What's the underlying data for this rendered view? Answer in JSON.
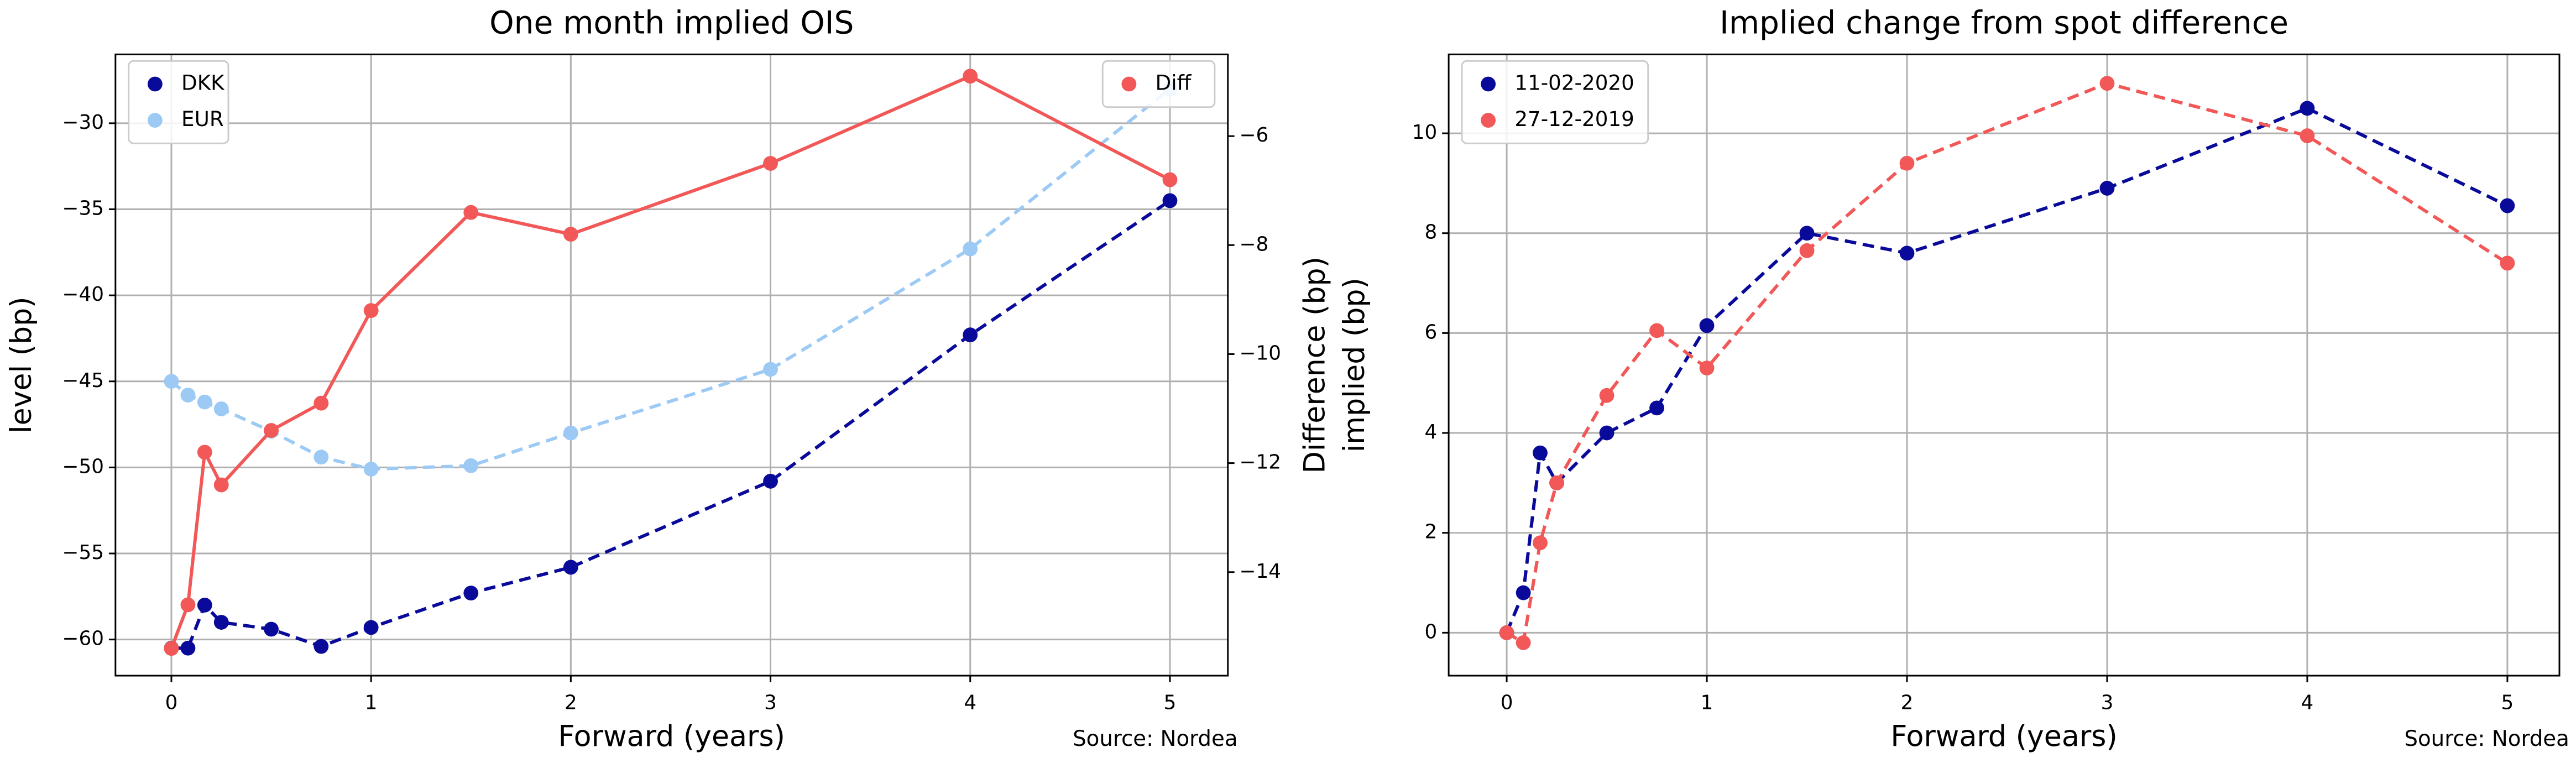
{
  "chart_data": [
    {
      "type": "line",
      "title": "One month implied OIS",
      "title_color": "#000000",
      "xlabel": "Forward (years)",
      "ylabel": "level (bp)",
      "y2label": "Difference (bp)",
      "y2label_color": "#0a0a9a",
      "source": "Source: Nordea",
      "x": [
        0,
        0.083,
        0.167,
        0.25,
        0.5,
        0.75,
        1,
        1.5,
        2,
        3,
        4,
        5
      ],
      "series": [
        {
          "name": "DKK",
          "color": "#0a0a9a",
          "linestyle": "dashed",
          "values": [
            -60.5,
            -60.5,
            -58.0,
            -59.0,
            -59.4,
            -60.4,
            -59.3,
            -57.3,
            -55.8,
            -50.8,
            -42.3,
            -34.5
          ]
        },
        {
          "name": "EUR",
          "color": "#9ccaf5",
          "linestyle": "dashed",
          "values": [
            -45.0,
            -45.8,
            -46.2,
            -46.6,
            -47.9,
            -49.4,
            -50.1,
            -49.9,
            -48.0,
            -44.3,
            -37.3,
            -28.0
          ]
        },
        {
          "name": "Diff",
          "color": "#f25858",
          "linestyle": "solid",
          "axis": "y2",
          "values": [
            -15.4,
            -14.6,
            -11.8,
            -12.4,
            -11.4,
            -10.9,
            -9.2,
            -7.4,
            -7.8,
            -6.5,
            -4.9,
            -6.8
          ]
        }
      ],
      "xlim": [
        -0.28,
        5.29
      ],
      "xticks": [
        0,
        1,
        2,
        3,
        4,
        5
      ],
      "ylim": [
        -62.1,
        -26.0
      ],
      "yticks": [
        {
          "value": -60,
          "label": "−60"
        },
        {
          "value": -55,
          "label": "−55"
        },
        {
          "value": -50,
          "label": "−50"
        },
        {
          "value": -45,
          "label": "−45"
        },
        {
          "value": -40,
          "label": "−40"
        },
        {
          "value": -35,
          "label": "−35"
        },
        {
          "value": -30,
          "label": "−30"
        }
      ],
      "y2lim": [
        -15.9,
        -4.5
      ],
      "y2ticks": [
        {
          "value": -14,
          "label": "−14"
        },
        {
          "value": -12,
          "label": "−12"
        },
        {
          "value": -10,
          "label": "−10"
        },
        {
          "value": -8,
          "label": "−8"
        },
        {
          "value": -6,
          "label": "−6"
        }
      ],
      "grid": true,
      "legend": "upper left",
      "legend2": "upper right"
    },
    {
      "type": "line",
      "title": "Implied change from spot difference",
      "title_color": "#1010a8",
      "xlabel": "Forward (years)",
      "ylabel": "implied (bp)",
      "source": "Source: Nordea",
      "x": [
        0,
        0.083,
        0.167,
        0.25,
        0.5,
        0.75,
        1,
        1.5,
        2,
        3,
        4,
        5
      ],
      "series": [
        {
          "name": "11-02-2020",
          "color": "#0a0a9a",
          "linestyle": "dashed",
          "values": [
            0,
            0.8,
            3.6,
            3.0,
            4.0,
            4.5,
            6.15,
            8.0,
            7.6,
            8.9,
            10.5,
            8.55
          ]
        },
        {
          "name": "27-12-2019",
          "color": "#f25858",
          "linestyle": "dashed",
          "values": [
            0,
            -0.2,
            1.8,
            3.0,
            4.75,
            6.05,
            5.3,
            7.65,
            9.4,
            11.0,
            9.95,
            7.4
          ]
        }
      ],
      "xlim": [
        -0.29,
        5.26
      ],
      "xticks": [
        0,
        1,
        2,
        3,
        4,
        5
      ],
      "ylim": [
        -0.86,
        11.58
      ],
      "yticks": [
        0,
        2,
        4,
        6,
        8,
        10
      ],
      "grid": true,
      "legend": "upper left"
    }
  ]
}
